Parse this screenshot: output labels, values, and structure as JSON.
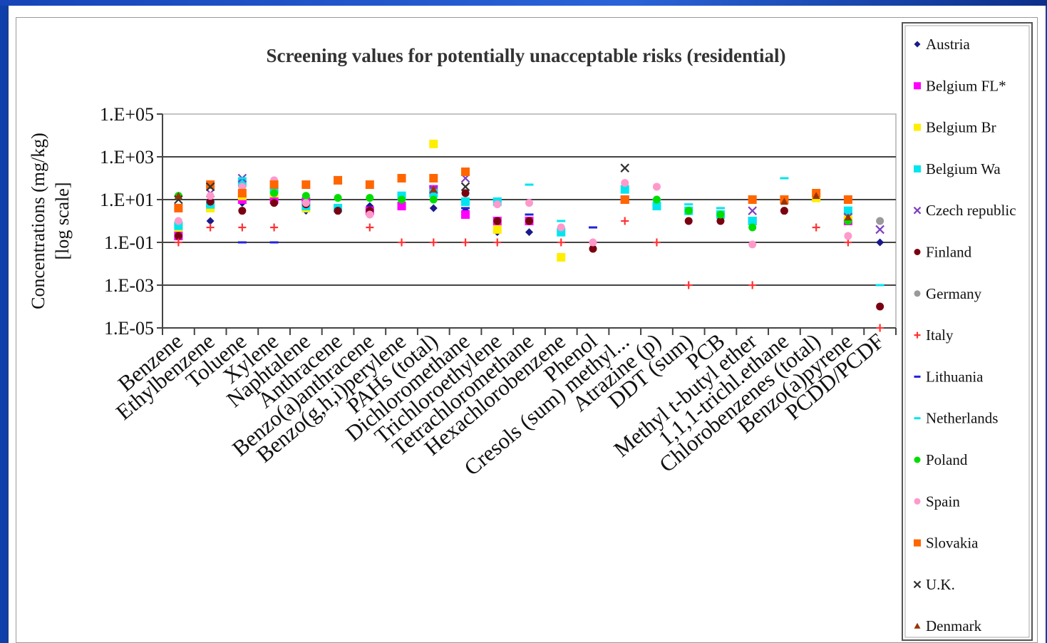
{
  "chart_data": {
    "type": "scatter",
    "title": "Screening values for  potentially unacceptable risks (residential)",
    "ylabel_line1": "Concentrations (mg/kg)",
    "ylabel_line2": "[log scale]",
    "yscale": "log",
    "ylim": [
      1e-05,
      100000
    ],
    "ytick_values": [
      1e-05,
      0.001,
      0.1,
      10,
      1000,
      100000
    ],
    "ytick_labels": [
      "1.E-05",
      "1.E-03",
      "1.E-01",
      "1.E+01",
      "1.E+03",
      "1.E+05"
    ],
    "grid": true,
    "legend_position": "right",
    "categories": [
      "Benzene",
      "Ethylbenzene",
      "Toluene",
      "Xylene",
      "Naphtalene",
      "Anthracene",
      "Benzo(a)anthracene",
      "Benzo(g,h,i)perylene",
      "PAHs (total)",
      "Dichloromethane",
      "Trichloroethylene",
      "Tetrachloromethane",
      "Hexachlorobenzene",
      "Phenol",
      "Cresols (sum) methyl...",
      "Atrazine (p)",
      "DDT (sum)",
      "PCB",
      "Methyl t-butyl ether",
      "1,1,1-trichl.ethane",
      "Chlorobenzenes (total)",
      "Benzo(a)pyrene",
      "PCDD/PCDF"
    ],
    "series": [
      {
        "name": "Austria",
        "color": "#1a1a8c",
        "marker": "diamond",
        "values": [
          0.3,
          1,
          7,
          8,
          3,
          3,
          5,
          12,
          4,
          3,
          0.3,
          0.3,
          null,
          null,
          null,
          null,
          null,
          null,
          null,
          null,
          null,
          null,
          0.1
        ]
      },
      {
        "name": "Belgium FL*",
        "color": "#ff00ff",
        "marker": "square",
        "values": [
          0.2,
          5,
          10,
          10,
          8,
          null,
          3,
          5,
          30,
          2,
          1,
          1,
          null,
          null,
          10,
          null,
          null,
          null,
          1,
          null,
          null,
          1,
          null
        ]
      },
      {
        "name": "Belgium Br",
        "color": "#ffee00",
        "marker": "square",
        "values": [
          0.5,
          4,
          15,
          20,
          4,
          null,
          null,
          null,
          4000,
          null,
          0.4,
          null,
          0.02,
          null,
          null,
          null,
          null,
          null,
          null,
          null,
          12,
          1.5,
          null
        ]
      },
      {
        "name": "Belgium Wa",
        "color": "#00e5ee",
        "marker": "square",
        "values": [
          0.6,
          6,
          60,
          30,
          5,
          4,
          null,
          15,
          20,
          8,
          8,
          null,
          0.3,
          null,
          30,
          5,
          3,
          2,
          1,
          null,
          null,
          3,
          null
        ]
      },
      {
        "name": "Czech republic",
        "color": "#7f3fbf",
        "marker": "x",
        "values": [
          null,
          20,
          100,
          null,
          null,
          80,
          null,
          null,
          30,
          100,
          null,
          null,
          null,
          null,
          null,
          null,
          null,
          null,
          3,
          null,
          null,
          1.5,
          0.4
        ]
      },
      {
        "name": "Finland",
        "color": "#7a0010",
        "marker": "circle",
        "values": [
          0.2,
          8,
          3,
          7,
          6,
          3,
          3,
          null,
          null,
          20,
          1,
          1,
          null,
          0.05,
          null,
          null,
          1,
          1,
          null,
          3,
          null,
          null,
          0.0001
        ]
      },
      {
        "name": "Germany",
        "color": "#9a9a9a",
        "marker": "circle",
        "values": [
          null,
          null,
          null,
          null,
          null,
          null,
          null,
          null,
          null,
          null,
          null,
          null,
          null,
          null,
          null,
          null,
          null,
          null,
          null,
          null,
          null,
          null,
          1
        ]
      },
      {
        "name": "Italy",
        "color": "#ff3333",
        "marker": "plus",
        "values": [
          0.1,
          0.5,
          0.5,
          0.5,
          null,
          null,
          0.5,
          0.1,
          0.1,
          0.1,
          0.1,
          null,
          0.1,
          0.1,
          1,
          0.1,
          0.001,
          null,
          0.001,
          null,
          0.5,
          0.1,
          1e-05
        ]
      },
      {
        "name": "Lithuania",
        "color": "#2222dd",
        "marker": "dash",
        "values": [
          null,
          null,
          0.1,
          0.1,
          null,
          null,
          null,
          null,
          null,
          4,
          null,
          2,
          null,
          0.5,
          null,
          null,
          null,
          null,
          null,
          null,
          null,
          null,
          null
        ]
      },
      {
        "name": "Netherlands",
        "color": "#00e5ee",
        "marker": "dash",
        "values": [
          null,
          null,
          100,
          null,
          null,
          null,
          null,
          null,
          null,
          null,
          10,
          50,
          1,
          null,
          null,
          10,
          6,
          4,
          null,
          100,
          null,
          null,
          0.001
        ]
      },
      {
        "name": "Poland",
        "color": "#00dd00",
        "marker": "circle",
        "values": [
          15,
          null,
          20,
          20,
          15,
          12,
          12,
          10,
          10,
          null,
          null,
          null,
          null,
          null,
          null,
          10,
          3,
          2,
          0.5,
          null,
          null,
          1,
          null
        ]
      },
      {
        "name": "Spain",
        "color": "#ff99cc",
        "marker": "circle",
        "values": [
          1,
          15,
          40,
          80,
          7,
          null,
          2,
          null,
          null,
          null,
          6,
          7,
          0.5,
          0.1,
          60,
          40,
          null,
          null,
          0.08,
          null,
          null,
          0.2,
          null
        ]
      },
      {
        "name": "Slovakia",
        "color": "#ff6600",
        "marker": "square",
        "values": [
          4,
          50,
          20,
          50,
          50,
          80,
          50,
          100,
          100,
          200,
          null,
          null,
          null,
          null,
          10,
          null,
          null,
          null,
          10,
          10,
          20,
          10,
          null
        ]
      },
      {
        "name": "U.K.",
        "color": "#333333",
        "marker": "x",
        "values": [
          10,
          40,
          null,
          null,
          null,
          null,
          null,
          null,
          null,
          40,
          null,
          null,
          null,
          null,
          300,
          null,
          null,
          null,
          null,
          null,
          null,
          null,
          null
        ]
      },
      {
        "name": "Denmark",
        "color": "#993300",
        "marker": "triangle",
        "values": [
          15,
          null,
          null,
          null,
          null,
          null,
          null,
          null,
          30,
          null,
          null,
          null,
          null,
          null,
          null,
          null,
          null,
          null,
          null,
          8,
          15,
          1.5,
          null
        ]
      }
    ]
  }
}
